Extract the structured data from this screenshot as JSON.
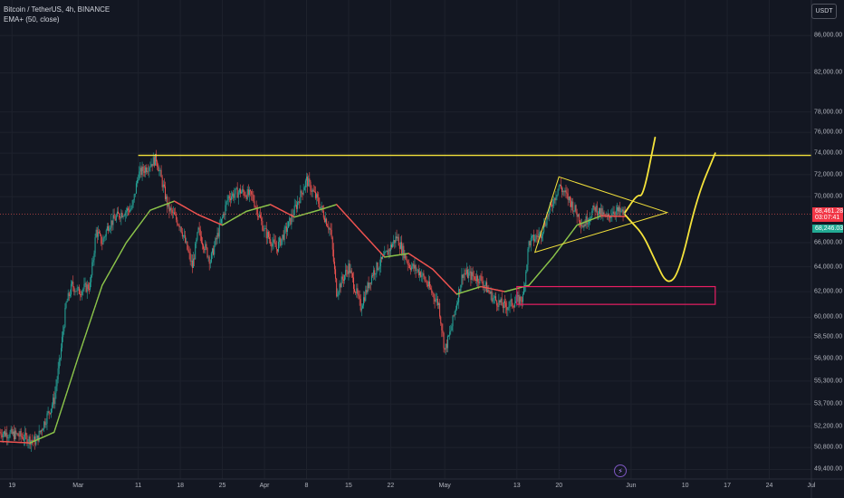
{
  "legend": {
    "symbol": "Bitcoin / TetherUS, 4h, BINANCE",
    "indicator": "EMA+ (50, close)"
  },
  "currency_button": "USDT",
  "price_tags": {
    "last_price": "68,461.28",
    "countdown": "03:07:41",
    "ema_value": "68,246.03",
    "last_color": "#f23645",
    "ema_color": "#22ab94"
  },
  "colors": {
    "background": "#131722",
    "up_candle": "#26a69a",
    "down_candle": "#ef5350",
    "ema_up": "#8bc34a",
    "ema_down": "#ef5350",
    "drawing_yellow": "#f5e33b",
    "zone_pink": "#e91e63"
  },
  "logo_icon": "tradingview-lightning-icon",
  "chart_data": {
    "type": "candlestick",
    "title": "Bitcoin / TetherUS, 4h, BINANCE",
    "xlabel": "",
    "ylabel": "",
    "x_ticks": [
      "19",
      "Mar",
      "11",
      "18",
      "25",
      "Apr",
      "8",
      "15",
      "22",
      "May",
      "13",
      "20",
      "Jun",
      "10",
      "17",
      "24",
      "Jul"
    ],
    "y_ticks": [
      "86,000.00",
      "82,000.00",
      "78,000.00",
      "76,000.00",
      "74,000.00",
      "72,000.00",
      "70,000.00",
      "66,000.00",
      "64,000.00",
      "62,000.00",
      "60,000.00",
      "58,500.00",
      "56,900.00",
      "55,300.00",
      "53,700.00",
      "52,200.00",
      "50,800.00",
      "49,400.00"
    ],
    "y_scale": "log",
    "ylim": [
      48800,
      90000
    ],
    "x_range": [
      "2024-02-17",
      "2024-07-01"
    ],
    "grid": true,
    "series": [
      {
        "name": "Bitcoin / TetherUS",
        "kind": "candles",
        "path": [
          [
            "2024-02-17",
            51800
          ],
          [
            "2024-02-20",
            51600
          ],
          [
            "2024-02-23",
            51200
          ],
          [
            "2024-02-26",
            54000
          ],
          [
            "2024-02-27",
            57000
          ],
          [
            "2024-02-28",
            61000
          ],
          [
            "2024-02-29",
            62500
          ],
          [
            "2024-03-01",
            62000
          ],
          [
            "2024-03-03",
            62500
          ],
          [
            "2024-03-04",
            67000
          ],
          [
            "2024-03-05",
            66000
          ],
          [
            "2024-03-06",
            67500
          ],
          [
            "2024-03-08",
            68500
          ],
          [
            "2024-03-10",
            69000
          ],
          [
            "2024-03-11",
            72000
          ],
          [
            "2024-03-13",
            73000
          ],
          [
            "2024-03-14",
            73500
          ],
          [
            "2024-03-16",
            69000
          ],
          [
            "2024-03-18",
            67500
          ],
          [
            "2024-03-20",
            64000
          ],
          [
            "2024-03-21",
            67000
          ],
          [
            "2024-03-23",
            64500
          ],
          [
            "2024-03-26",
            70000
          ],
          [
            "2024-03-28",
            70500
          ],
          [
            "2024-03-30",
            70000
          ],
          [
            "2024-04-01",
            67000
          ],
          [
            "2024-04-03",
            65500
          ],
          [
            "2024-04-05",
            67500
          ],
          [
            "2024-04-08",
            71500
          ],
          [
            "2024-04-10",
            69500
          ],
          [
            "2024-04-12",
            67000
          ],
          [
            "2024-04-13",
            62000
          ],
          [
            "2024-04-15",
            64000
          ],
          [
            "2024-04-17",
            60800
          ],
          [
            "2024-04-19",
            63500
          ],
          [
            "2024-04-21",
            64800
          ],
          [
            "2024-04-23",
            66500
          ],
          [
            "2024-04-25",
            64200
          ],
          [
            "2024-04-27",
            63500
          ],
          [
            "2024-04-30",
            61000
          ],
          [
            "2024-05-01",
            57500
          ],
          [
            "2024-05-02",
            59000
          ],
          [
            "2024-05-04",
            63500
          ],
          [
            "2024-05-07",
            63000
          ],
          [
            "2024-05-09",
            61500
          ],
          [
            "2024-05-11",
            60800
          ],
          [
            "2024-05-14",
            61500
          ],
          [
            "2024-05-15",
            66000
          ],
          [
            "2024-05-17",
            66800
          ],
          [
            "2024-05-20",
            71000
          ],
          [
            "2024-05-22",
            69500
          ],
          [
            "2024-05-24",
            67500
          ],
          [
            "2024-05-26",
            69000
          ],
          [
            "2024-05-28",
            68000
          ],
          [
            "2024-05-29",
            68800
          ],
          [
            "2024-05-31",
            68461
          ]
        ]
      },
      {
        "name": "EMA+ (50, close)",
        "kind": "line",
        "path": [
          [
            "2024-02-17",
            51200
          ],
          [
            "2024-02-22",
            51100
          ],
          [
            "2024-02-26",
            51800
          ],
          [
            "2024-03-01",
            57000
          ],
          [
            "2024-03-05",
            62500
          ],
          [
            "2024-03-09",
            66000
          ],
          [
            "2024-03-13",
            68800
          ],
          [
            "2024-03-17",
            69600
          ],
          [
            "2024-03-21",
            68400
          ],
          [
            "2024-03-25",
            67500
          ],
          [
            "2024-03-29",
            68700
          ],
          [
            "2024-04-02",
            69300
          ],
          [
            "2024-04-06",
            68200
          ],
          [
            "2024-04-10",
            68800
          ],
          [
            "2024-04-13",
            69300
          ],
          [
            "2024-04-17",
            67000
          ],
          [
            "2024-04-21",
            64800
          ],
          [
            "2024-04-25",
            65100
          ],
          [
            "2024-04-29",
            63800
          ],
          [
            "2024-05-03",
            61800
          ],
          [
            "2024-05-07",
            62400
          ],
          [
            "2024-05-11",
            62000
          ],
          [
            "2024-05-15",
            62500
          ],
          [
            "2024-05-19",
            64800
          ],
          [
            "2024-05-23",
            67500
          ],
          [
            "2024-05-27",
            68300
          ],
          [
            "2024-05-31",
            68246
          ]
        ]
      }
    ],
    "drawings": {
      "resistance_line": {
        "price": 73800,
        "from": "2024-03-11",
        "to": "2024-07-01"
      },
      "current_price_line": {
        "price": 68461
      },
      "triangle": [
        [
          "2024-05-20",
          71800
        ],
        [
          "2024-06-07",
          68600
        ],
        [
          "2024-05-16",
          65200
        ]
      ],
      "demand_zone": {
        "from": "2024-05-13",
        "to": "2024-06-15",
        "low": 61000,
        "high": 62400
      },
      "projection_up": [
        [
          "2024-05-31",
          68600
        ],
        [
          "2024-06-02",
          70200
        ],
        [
          "2024-06-03",
          70000
        ],
        [
          "2024-06-05",
          75500
        ]
      ],
      "projection_down_up": [
        [
          "2024-05-31",
          68400
        ],
        [
          "2024-06-01",
          67800
        ],
        [
          "2024-06-03",
          66700
        ],
        [
          "2024-06-05",
          64500
        ],
        [
          "2024-06-07",
          62500
        ],
        [
          "2024-06-09",
          63500
        ],
        [
          "2024-06-12",
          70000
        ],
        [
          "2024-06-15",
          74000
        ]
      ]
    }
  }
}
